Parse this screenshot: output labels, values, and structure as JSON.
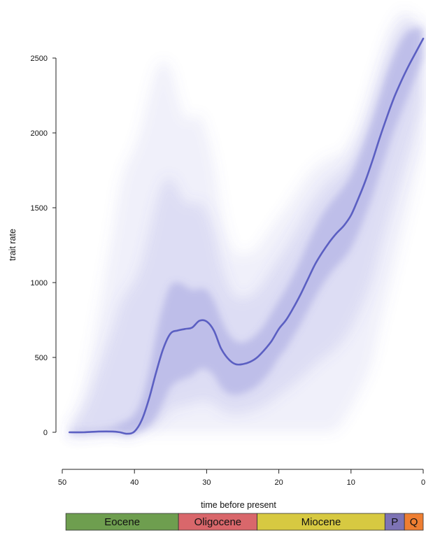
{
  "chart_data": {
    "type": "line",
    "title": "",
    "xlabel": "time before present",
    "ylabel": "trait rate",
    "xlim": [
      50,
      0
    ],
    "ylim": [
      0,
      2500
    ],
    "x_ticks": [
      50,
      40,
      30,
      20,
      10,
      0
    ],
    "y_ticks": [
      0,
      500,
      1000,
      1500,
      2000,
      2500
    ],
    "grid": false,
    "series": [
      {
        "type": "line",
        "color": "#5b5fc2",
        "x": [
          49,
          47,
          45,
          43,
          42,
          41,
          40,
          39,
          38,
          37,
          36,
          35,
          34,
          33,
          32,
          31,
          30,
          29,
          28,
          27,
          26,
          25,
          24,
          23,
          22,
          21,
          20,
          19,
          18,
          17,
          16,
          15,
          14,
          13,
          12,
          11,
          10,
          9,
          8,
          7,
          6,
          5,
          4,
          3,
          2,
          1,
          0
        ],
        "y": [
          0,
          0,
          5,
          5,
          0,
          -10,
          5,
          80,
          220,
          400,
          560,
          660,
          680,
          690,
          700,
          745,
          740,
          680,
          560,
          490,
          455,
          455,
          470,
          500,
          550,
          610,
          690,
          750,
          830,
          920,
          1020,
          1120,
          1200,
          1270,
          1330,
          1380,
          1450,
          1560,
          1680,
          1820,
          1970,
          2110,
          2240,
          2350,
          2450,
          2540,
          2630
        ]
      }
    ],
    "uncertainty_band": {
      "x": [
        49,
        47,
        45,
        43,
        42,
        41,
        40,
        39,
        38,
        37,
        36,
        35,
        34,
        33,
        32,
        31,
        30,
        29,
        28,
        27,
        26,
        25,
        24,
        23,
        22,
        21,
        20,
        19,
        18,
        17,
        16,
        15,
        14,
        13,
        12,
        11,
        10,
        9,
        8,
        7,
        6,
        5,
        4,
        3,
        2,
        1,
        0
      ],
      "upper": [
        50,
        300,
        800,
        1350,
        1650,
        1800,
        1900,
        2050,
        2250,
        2420,
        2480,
        2430,
        2250,
        2100,
        2100,
        2120,
        2000,
        1800,
        1500,
        1300,
        1200,
        1190,
        1200,
        1230,
        1300,
        1370,
        1440,
        1500,
        1580,
        1650,
        1720,
        1770,
        1810,
        1840,
        1850,
        1880,
        1950,
        2050,
        2180,
        2350,
        2500,
        2650,
        2750,
        2810,
        2800,
        2760,
        2700
      ],
      "lower": [
        -40,
        -30,
        -20,
        -10,
        -20,
        -30,
        -20,
        0,
        0,
        0,
        0,
        0,
        0,
        0,
        0,
        0,
        0,
        0,
        0,
        0,
        0,
        0,
        0,
        0,
        0,
        0,
        0,
        0,
        0,
        0,
        0,
        0,
        0,
        0,
        20,
        80,
        160,
        250,
        350,
        480,
        700,
        900,
        1100,
        1300,
        1500,
        1700,
        1900
      ],
      "inner_upper": [
        15,
        20,
        25,
        40,
        60,
        80,
        120,
        220,
        400,
        650,
        850,
        980,
        1000,
        980,
        950,
        960,
        950,
        880,
        760,
        660,
        610,
        600,
        620,
        660,
        720,
        800,
        880,
        960,
        1050,
        1150,
        1260,
        1360,
        1450,
        1520,
        1580,
        1640,
        1720,
        1830,
        1960,
        2100,
        2250,
        2400,
        2520,
        2620,
        2680,
        2700,
        2700
      ],
      "inner_lower": [
        -10,
        -10,
        -5,
        -5,
        -10,
        -20,
        -10,
        10,
        40,
        100,
        200,
        300,
        340,
        360,
        380,
        420,
        420,
        380,
        300,
        260,
        250,
        260,
        280,
        310,
        360,
        420,
        500,
        560,
        640,
        720,
        810,
        900,
        980,
        1050,
        1110,
        1160,
        1230,
        1330,
        1450,
        1580,
        1730,
        1880,
        2020,
        2140,
        2260,
        2380,
        2500
      ],
      "color": "#6a6ccc"
    },
    "epochs": [
      {
        "name": "Eocene",
        "start": 49.5,
        "end": 33.9,
        "color": "#6e9e4f"
      },
      {
        "name": "Oligocene",
        "start": 33.9,
        "end": 23.0,
        "color": "#d9676b"
      },
      {
        "name": "Miocene",
        "start": 23.0,
        "end": 5.3,
        "color": "#d7c941"
      },
      {
        "name": "P",
        "start": 5.3,
        "end": 2.6,
        "color": "#7d73b5"
      },
      {
        "name": "Q",
        "start": 2.6,
        "end": 0,
        "color": "#ee7e32"
      }
    ]
  }
}
